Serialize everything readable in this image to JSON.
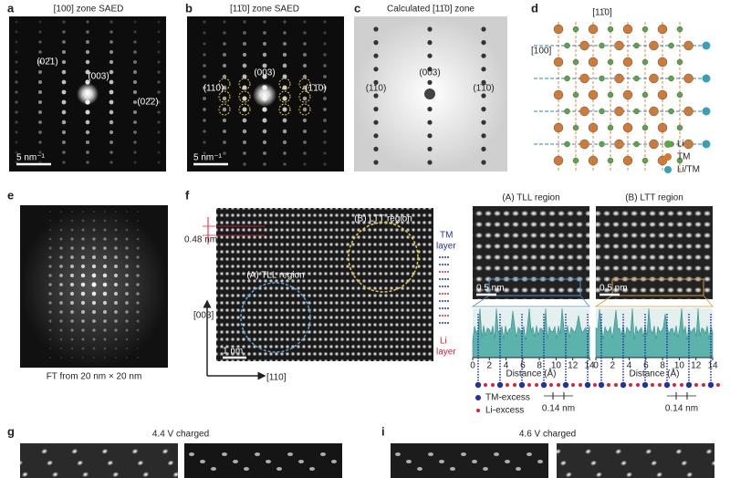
{
  "panels": {
    "a": {
      "letter": "a",
      "title": "[100] zone SAED",
      "labels": [
        "(02̄1)",
        "(003)",
        "(02̄2)"
      ],
      "scale_bar": "5 nm⁻¹"
    },
    "b": {
      "letter": "b",
      "title": "[11̄0] zone SAED",
      "labels": [
        "(003)",
        "(110)",
        "(1̄1̄0)"
      ],
      "scale_bar": "5 nm⁻¹"
    },
    "c": {
      "letter": "c",
      "title": "Calculated [11̄0] zone",
      "labels": [
        "(003)",
        "(110)",
        "(1̄1̄0)"
      ]
    },
    "d": {
      "letter": "d",
      "directions": [
        "[11̄0]",
        "[100]"
      ],
      "legend": [
        "Li",
        "TM",
        "Li/TM"
      ]
    },
    "e": {
      "letter": "e",
      "caption": "FT from 20 nm × 20 nm"
    },
    "f": {
      "letter": "f",
      "spacing": "0.48 nm",
      "regions": [
        "(B) LTT region",
        "(A) TLL region"
      ],
      "tm_layer": [
        "TM",
        "layer"
      ],
      "li_layer": [
        "Li",
        "layer"
      ],
      "axes": [
        "[003]",
        "[110]"
      ],
      "scale_bar": "1 nm",
      "profiles": [
        {
          "title": "(A) TLL region",
          "scale_bar": "0.5 nm",
          "x_ticks": [
            0,
            2,
            4,
            6,
            8,
            10,
            12,
            14
          ],
          "x_label": "Distance (Å)",
          "spacing": "0.14 nm"
        },
        {
          "title": "(B) LTT region",
          "scale_bar": "0.5 nm",
          "x_ticks": [
            0,
            2,
            4,
            6,
            8,
            10,
            12,
            14
          ],
          "x_label": "Distance (Å)",
          "spacing": "0.14 nm"
        }
      ],
      "legend": [
        "TM-excess",
        "Li-excess"
      ]
    },
    "g": {
      "letter": "g",
      "title": "4.4 V charged"
    },
    "i": {
      "letter": "i",
      "title": "4.6 V charged"
    }
  }
}
